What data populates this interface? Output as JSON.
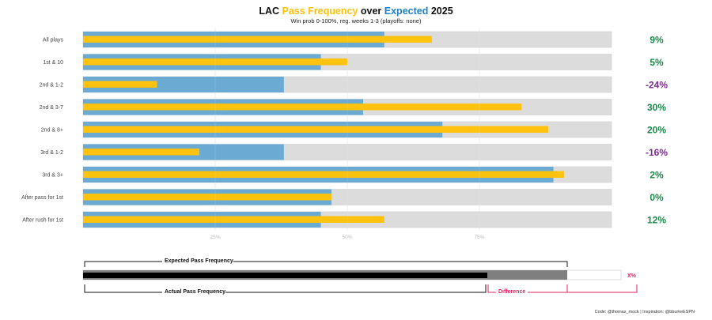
{
  "chart_data": {
    "type": "bar",
    "title": {
      "team": "LAC",
      "part1": "Pass Frequency",
      "part2": "over",
      "part3": "Expected",
      "year": "2025"
    },
    "subtitle": "Win prob 0-100%, reg. weeks 1-3 (playoffs: none)",
    "xlabel": "",
    "ylabel": "",
    "xlim": [
      0,
      100
    ],
    "x_ticks": [
      "25%",
      "50%",
      "75%"
    ],
    "x_tick_values": [
      25,
      50,
      75
    ],
    "grid": true,
    "categories": [
      "All plays",
      "1st & 10",
      "2nd & 1-2",
      "2nd & 3-7",
      "2nd & 8+",
      "3rd & 1-2",
      "3rd & 3+",
      "After pass for 1st",
      "After rush for 1st"
    ],
    "series": [
      {
        "name": "Expected Pass Frequency",
        "color": "#6aaad3",
        "values": [
          57,
          45,
          38,
          53,
          68,
          38,
          89,
          47,
          45
        ]
      },
      {
        "name": "Actual Pass Frequency",
        "color": "#ffc20e",
        "values": [
          66,
          50,
          14,
          83,
          88,
          22,
          91,
          47,
          57
        ]
      }
    ],
    "differences": [
      "9%",
      "5%",
      "-24%",
      "30%",
      "20%",
      "-16%",
      "2%",
      "0%",
      "12%"
    ],
    "colors": {
      "background_bar": "#dcdcdc",
      "positive": "#1a8a4a",
      "negative": "#7b2d8e",
      "title_pass": "#ffc20e",
      "title_expected": "#1f7fc4",
      "difference_accent": "#e0245e"
    }
  },
  "legend": {
    "expected_label": "Expected Pass Frequency",
    "actual_label": "Actual Pass Frequency",
    "difference_label": "Difference",
    "x_pct_label": "X%"
  },
  "caption": "Code: @thomas_mock | Inspiration: @bburkeESPN"
}
